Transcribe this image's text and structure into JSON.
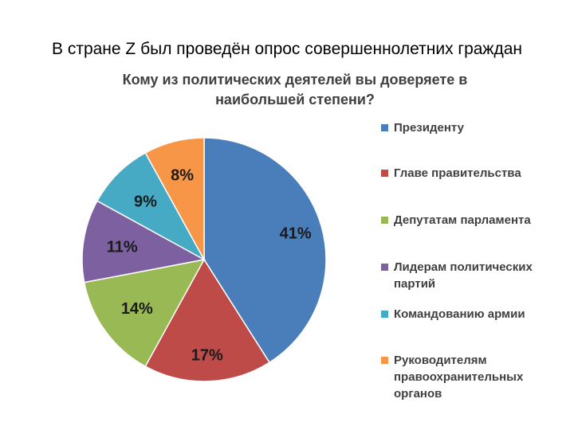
{
  "slide": {
    "title": "В стране Z был проведён опрос совершеннолетних граждан"
  },
  "chart_data": {
    "type": "pie",
    "title": "Кому из политических деятелей вы доверяете в наибольшей степени?",
    "categories": [
      "Президенту",
      "Главе правительства",
      "Депутатам парламента",
      "Лидерам политических партий",
      "Командованию армии",
      "Руководителям правоохранительных органов"
    ],
    "values": [
      41,
      17,
      14,
      11,
      9,
      8
    ],
    "labels": [
      "41%",
      "17%",
      "14%",
      "11%",
      "9%",
      "8%"
    ],
    "colors": [
      "#4A7EBB",
      "#BE4B48",
      "#98B954",
      "#7D60A0",
      "#46AAC5",
      "#F79646"
    ],
    "legend": "right"
  }
}
